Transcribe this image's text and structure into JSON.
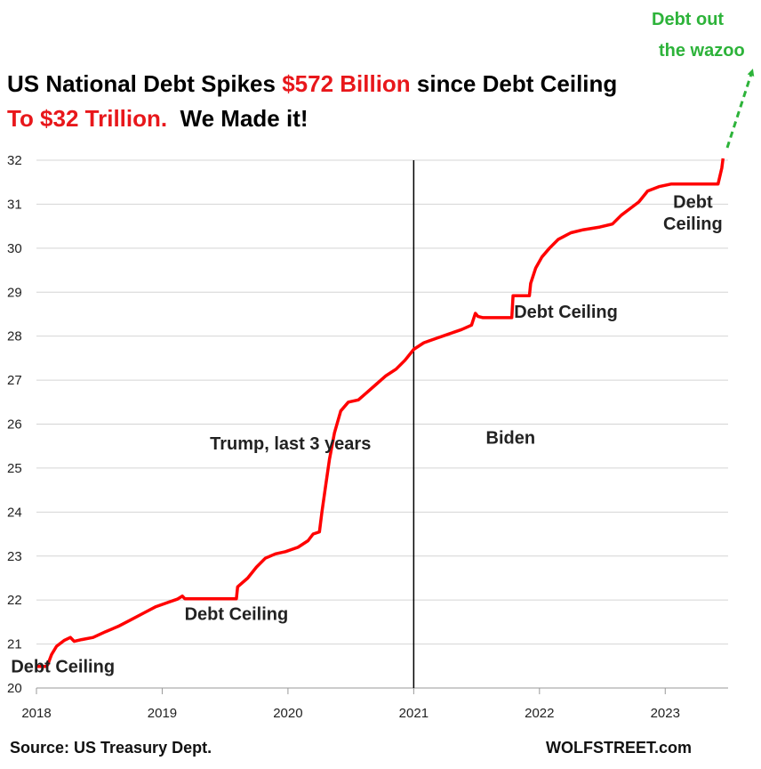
{
  "title": {
    "line1": [
      {
        "text": "US National Debt Spikes ",
        "color": "#000000"
      },
      {
        "text": "$572 Billion",
        "color": "#e8171b"
      },
      {
        "text": " since Debt Ceiling",
        "color": "#000000"
      }
    ],
    "line2": [
      {
        "text": "To $32 Trillion.",
        "color": "#e8171b"
      },
      {
        "text": "  We Made it!",
        "color": "#000000"
      }
    ]
  },
  "callout": {
    "line1": "Debt out",
    "line2": "the wazoo",
    "color": "#2db33a"
  },
  "footer": {
    "source": "Source: US Treasury Dept.",
    "brand": "WOLFSTREET.com"
  },
  "chart_data": {
    "type": "line",
    "xlabel": "",
    "ylabel": "",
    "xlim": [
      2018.0,
      2023.5
    ],
    "ylim": [
      20,
      32
    ],
    "x_ticks": [
      2018,
      2019,
      2020,
      2021,
      2022,
      2023
    ],
    "y_ticks": [
      20,
      21,
      22,
      23,
      24,
      25,
      26,
      27,
      28,
      29,
      30,
      31,
      32
    ],
    "grid": true,
    "line_color": "#ff0000",
    "divider_x": 2021.0,
    "series": [
      {
        "points": [
          [
            2018.0,
            20.49
          ],
          [
            2018.08,
            20.49
          ],
          [
            2018.09,
            20.53
          ],
          [
            2018.12,
            20.76
          ],
          [
            2018.16,
            20.95
          ],
          [
            2018.22,
            21.08
          ],
          [
            2018.27,
            21.15
          ],
          [
            2018.3,
            21.06
          ],
          [
            2018.36,
            21.1
          ],
          [
            2018.45,
            21.15
          ],
          [
            2018.55,
            21.28
          ],
          [
            2018.65,
            21.4
          ],
          [
            2018.75,
            21.55
          ],
          [
            2018.85,
            21.7
          ],
          [
            2018.95,
            21.85
          ],
          [
            2019.05,
            21.95
          ],
          [
            2019.12,
            22.02
          ],
          [
            2019.16,
            22.09
          ],
          [
            2019.18,
            22.03
          ],
          [
            2019.59,
            22.03
          ],
          [
            2019.6,
            22.3
          ],
          [
            2019.68,
            22.5
          ],
          [
            2019.75,
            22.75
          ],
          [
            2019.82,
            22.95
          ],
          [
            2019.9,
            23.05
          ],
          [
            2019.98,
            23.1
          ],
          [
            2020.08,
            23.2
          ],
          [
            2020.16,
            23.35
          ],
          [
            2020.2,
            23.5
          ],
          [
            2020.25,
            23.55
          ],
          [
            2020.27,
            24.0
          ],
          [
            2020.3,
            24.6
          ],
          [
            2020.33,
            25.2
          ],
          [
            2020.37,
            25.8
          ],
          [
            2020.42,
            26.3
          ],
          [
            2020.48,
            26.5
          ],
          [
            2020.56,
            26.55
          ],
          [
            2020.62,
            26.7
          ],
          [
            2020.7,
            26.9
          ],
          [
            2020.78,
            27.1
          ],
          [
            2020.86,
            27.25
          ],
          [
            2020.93,
            27.45
          ],
          [
            2021.0,
            27.7
          ],
          [
            2021.08,
            27.85
          ],
          [
            2021.18,
            27.95
          ],
          [
            2021.28,
            28.05
          ],
          [
            2021.38,
            28.15
          ],
          [
            2021.46,
            28.25
          ],
          [
            2021.49,
            28.52
          ],
          [
            2021.51,
            28.45
          ],
          [
            2021.55,
            28.42
          ],
          [
            2021.78,
            28.42
          ],
          [
            2021.79,
            28.92
          ],
          [
            2021.92,
            28.92
          ],
          [
            2021.93,
            29.2
          ],
          [
            2021.97,
            29.55
          ],
          [
            2022.02,
            29.8
          ],
          [
            2022.08,
            30.0
          ],
          [
            2022.15,
            30.2
          ],
          [
            2022.25,
            30.35
          ],
          [
            2022.35,
            30.42
          ],
          [
            2022.48,
            30.48
          ],
          [
            2022.58,
            30.55
          ],
          [
            2022.65,
            30.75
          ],
          [
            2022.72,
            30.9
          ],
          [
            2022.79,
            31.05
          ],
          [
            2022.86,
            31.3
          ],
          [
            2022.95,
            31.4
          ],
          [
            2023.05,
            31.46
          ],
          [
            2023.42,
            31.46
          ],
          [
            2023.45,
            31.82
          ],
          [
            2023.46,
            32.04
          ]
        ]
      }
    ],
    "annotations": [
      {
        "text": "Debt Ceiling",
        "x": 2018.21,
        "y": 20.35
      },
      {
        "text": "Debt Ceiling",
        "x": 2019.59,
        "y": 21.55
      },
      {
        "text": "Trump, last 3 years",
        "x": 2020.02,
        "y": 25.42
      },
      {
        "text": "Biden",
        "x": 2021.77,
        "y": 25.55
      },
      {
        "text": "Debt Ceiling",
        "x": 2022.21,
        "y": 28.42
      },
      {
        "text": "Debt",
        "x": 2023.22,
        "y": 30.92
      },
      {
        "text": "Ceiling",
        "x": 2023.22,
        "y": 30.42
      }
    ]
  }
}
